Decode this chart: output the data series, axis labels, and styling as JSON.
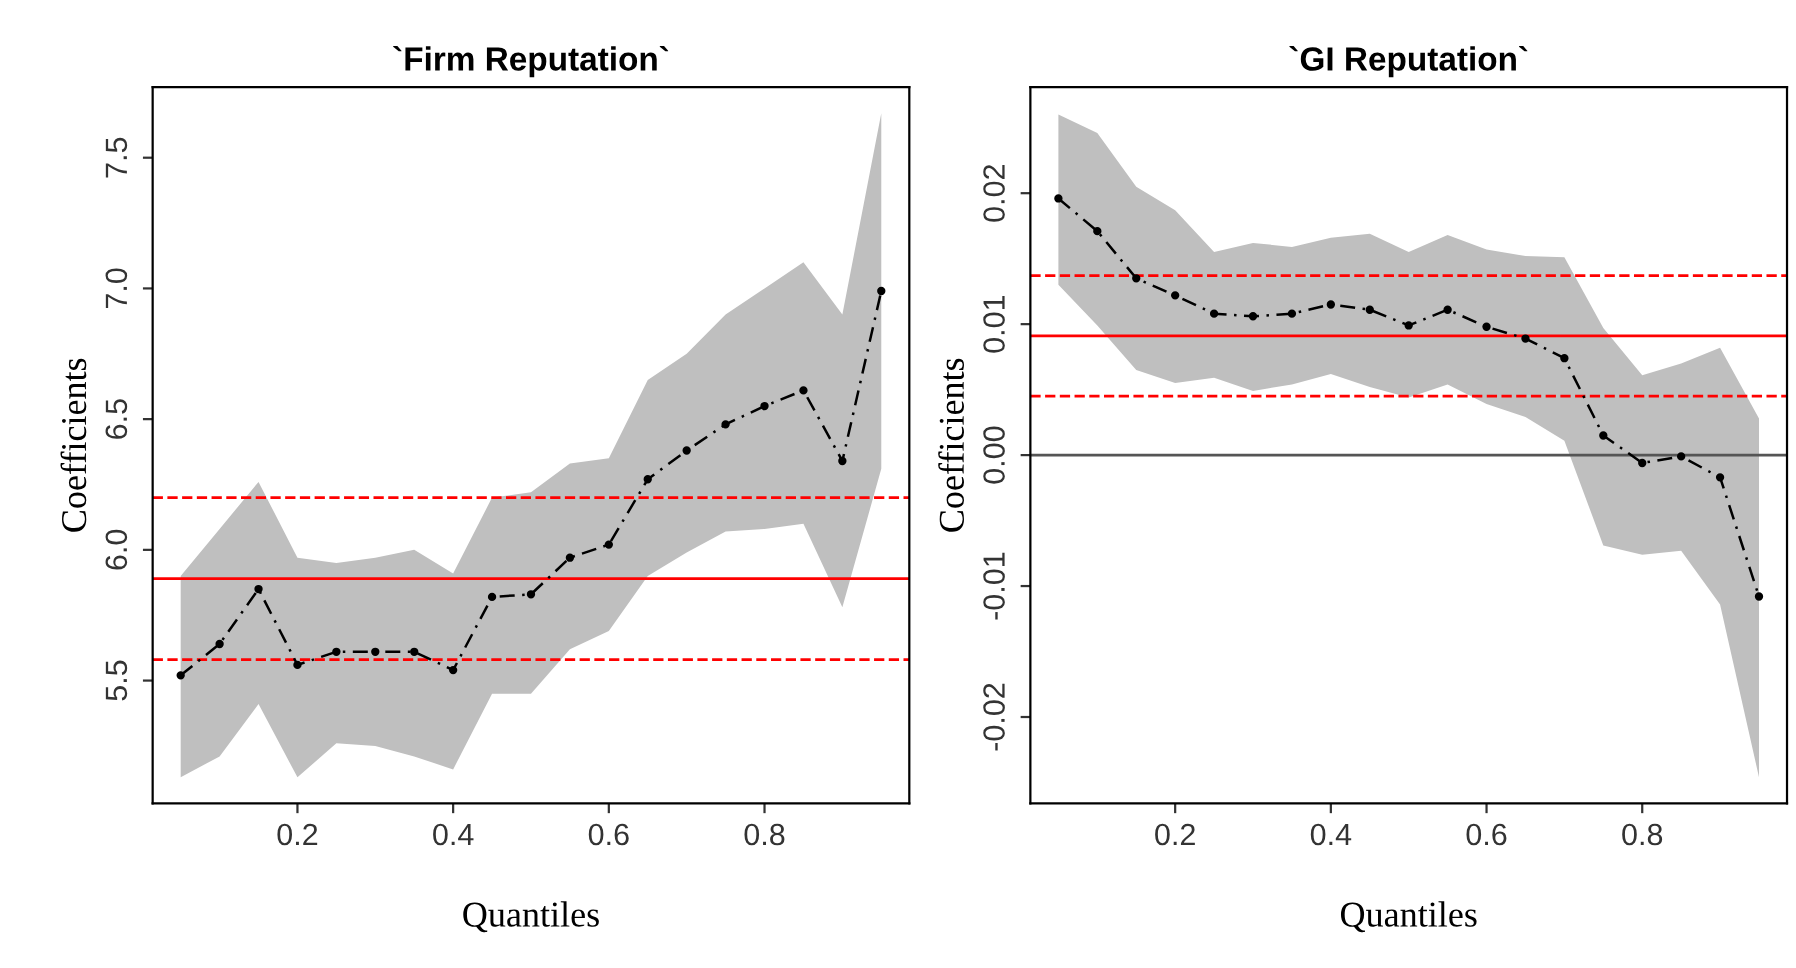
{
  "chart_data": [
    {
      "type": "line",
      "title": "`Firm Reputation`",
      "xlabel": "Quantiles",
      "ylabel": "Coefficients",
      "x": [
        0.05,
        0.1,
        0.15,
        0.2,
        0.25,
        0.3,
        0.35,
        0.4,
        0.45,
        0.5,
        0.55,
        0.6,
        0.65,
        0.7,
        0.75,
        0.8,
        0.85,
        0.9,
        0.95
      ],
      "series": [
        {
          "color": "#000000",
          "values": [
            5.52,
            5.64,
            5.85,
            5.56,
            5.61,
            5.61,
            5.61,
            5.54,
            5.82,
            5.83,
            5.97,
            6.02,
            6.27,
            6.38,
            6.48,
            6.55,
            6.61,
            6.34,
            6.99
          ],
          "lower": [
            5.13,
            5.21,
            5.41,
            5.13,
            5.26,
            5.25,
            5.21,
            5.16,
            5.45,
            5.45,
            5.62,
            5.69,
            5.9,
            5.99,
            6.07,
            6.08,
            6.1,
            5.78,
            6.31
          ],
          "upper": [
            5.9,
            6.08,
            6.26,
            5.97,
            5.95,
            5.97,
            6.0,
            5.91,
            6.2,
            6.22,
            6.33,
            6.35,
            6.65,
            6.75,
            6.9,
            7.0,
            7.1,
            6.9,
            7.67
          ]
        }
      ],
      "ref_lines": [
        {
          "axis": "y",
          "value": 5.89,
          "color": "#ff0000",
          "line_style": "solid"
        },
        {
          "axis": "y",
          "value": 6.2,
          "color": "#ff0000",
          "line_style": "dashed"
        },
        {
          "axis": "y",
          "value": 5.58,
          "color": "#ff0000",
          "line_style": "dashed"
        }
      ],
      "xlim": [
        0.014,
        0.986
      ],
      "xticks": [
        0.2,
        0.4,
        0.6,
        0.8
      ],
      "ylim": [
        5.03,
        7.77
      ],
      "yticks": [
        5.5,
        {
          "value": 6,
          "label": "6.0"
        },
        6.5,
        {
          "value": 7,
          "label": "7.0"
        },
        7.5
      ],
      "marker": "circle",
      "line_style": "dashed",
      "grid": false,
      "legend": false
    },
    {
      "type": "line",
      "title": "`GI Reputation`",
      "xlabel": "Quantiles",
      "ylabel": "Coefficients",
      "x": [
        0.05,
        0.1,
        0.15,
        0.2,
        0.25,
        0.3,
        0.35,
        0.4,
        0.45,
        0.5,
        0.55,
        0.6,
        0.65,
        0.7,
        0.75,
        0.8,
        0.85,
        0.9,
        0.95
      ],
      "series": [
        {
          "color": "#000000",
          "values": [
            0.0196,
            0.0171,
            0.0135,
            0.0122,
            0.0108,
            0.0106,
            0.0108,
            0.0115,
            0.0111,
            0.0099,
            0.0111,
            0.0098,
            0.0089,
            0.0074,
            0.0015,
            -0.0006,
            -0.0001,
            -0.0017,
            -0.0108
          ],
          "lower": [
            0.013,
            0.0099,
            0.0065,
            0.0055,
            0.0059,
            0.0049,
            0.0054,
            0.0062,
            0.0052,
            0.0044,
            0.0054,
            0.0039,
            0.0029,
            0.0011,
            -0.0069,
            -0.0076,
            -0.0073,
            -0.0114,
            -0.0246
          ],
          "upper": [
            0.026,
            0.0246,
            0.0205,
            0.0187,
            0.0155,
            0.0162,
            0.0159,
            0.0166,
            0.0169,
            0.0155,
            0.0168,
            0.0157,
            0.0152,
            0.0151,
            0.0097,
            0.0061,
            0.007,
            0.0082,
            0.0028
          ]
        }
      ],
      "ref_lines": [
        {
          "axis": "y",
          "value": 0.0091,
          "color": "#ff0000",
          "line_style": "solid"
        },
        {
          "axis": "y",
          "value": 0.0137,
          "color": "#ff0000",
          "line_style": "dashed"
        },
        {
          "axis": "y",
          "value": 0.0045,
          "color": "#ff0000",
          "line_style": "dashed"
        },
        {
          "axis": "y",
          "value": 0,
          "color": "#555555",
          "line_style": "solid"
        }
      ],
      "xlim": [
        0.014,
        0.986
      ],
      "xticks": [
        0.2,
        0.4,
        0.6,
        0.8
      ],
      "ylim": [
        -0.0266,
        0.0281
      ],
      "yticks": [
        {
          "value": -0.02,
          "label": "-0.02"
        },
        {
          "value": -0.01,
          "label": "-0.01"
        },
        {
          "value": 0,
          "label": "0.00"
        },
        {
          "value": 0.01,
          "label": "0.01"
        },
        {
          "value": 0.02,
          "label": "0.02"
        }
      ],
      "marker": "circle",
      "line_style": "dashed",
      "grid": false,
      "legend": false
    }
  ]
}
